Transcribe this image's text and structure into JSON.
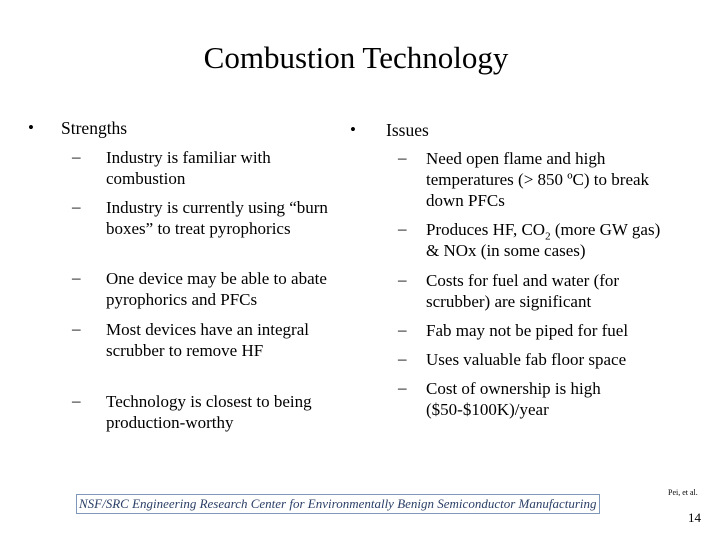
{
  "slide": {
    "title": "Combustion Technology",
    "left": {
      "bullet": "•",
      "heading": "Strengths",
      "items": [
        "Industry is familiar with combustion",
        "Industry is currently using “burn boxes” to treat pyrophorics",
        "One device may be able to abate pyrophorics and PFCs",
        "Most devices have an integral scrubber to remove HF",
        "Technology is closest to being production-worthy"
      ]
    },
    "right": {
      "bullet": "•",
      "heading": "Issues",
      "items": [
        "Need open flame and high temperatures (> 850 ºC) to break down PFCs",
        "Produces HF, CO2 (more GW gas) & NOx (in some cases)",
        "Costs for fuel and water (for scrubber) are significant",
        "Fab may not be piped for fuel",
        "Uses valuable fab floor space",
        "Cost of ownership is high ($50-$100K)/year"
      ],
      "co2_prefix": "Produces HF, CO",
      "co2_sub": "2",
      "co2_suffix": " (more GW gas) & NOx (in some cases)"
    },
    "dash": "–",
    "footer": "NSF/SRC Engineering Research Center for Environmentally Benign Semiconductor Manufacturing",
    "citation": "Pei, et al.",
    "page_number": "14"
  }
}
